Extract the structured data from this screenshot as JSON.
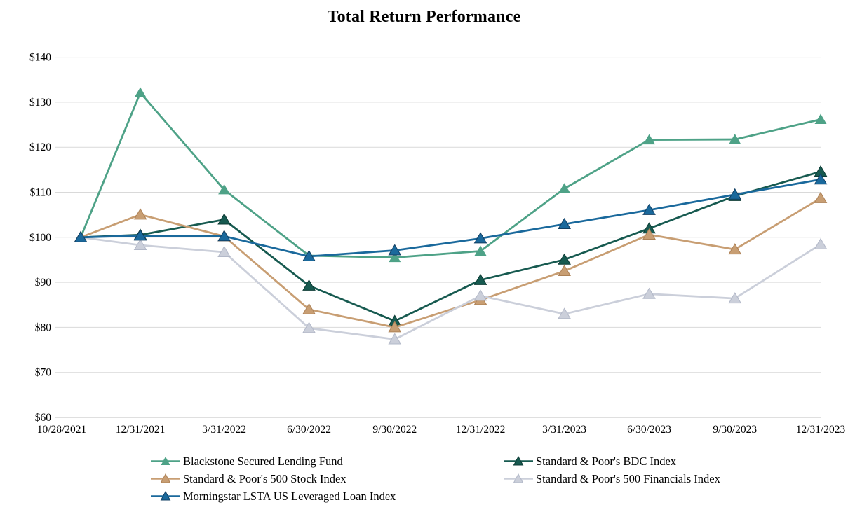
{
  "title": "Total Return Performance",
  "chart_data": {
    "type": "line",
    "title": "Total Return Performance",
    "xlabel": "",
    "ylabel": "",
    "grid": true,
    "legend_position": "bottom",
    "ylim": [
      60,
      140
    ],
    "y_tick_labels": [
      "$60",
      "$70",
      "$80",
      "$90",
      "$100",
      "$110",
      "$120",
      "$130",
      "$140"
    ],
    "y_tick_values": [
      60,
      70,
      80,
      90,
      100,
      110,
      120,
      130,
      140
    ],
    "x_labels": [
      "10/28/2021",
      "12/31/2021",
      "3/31/2022",
      "6/30/2022",
      "9/30/2022",
      "12/31/2022",
      "3/31/2023",
      "6/30/2023",
      "9/30/2023",
      "12/31/2023"
    ],
    "x_day_offsets": [
      0,
      64,
      154,
      245,
      337,
      429,
      519,
      610,
      702,
      794
    ],
    "series": [
      {
        "name": "Blackstone Secured Lending Fund",
        "color": "#4EA287",
        "edge_color": "#35english8a70",
        "values": [
          100.0,
          132.09,
          110.56,
          95.92,
          95.52,
          96.93,
          110.82,
          121.65,
          121.73,
          126.18
        ]
      },
      {
        "name": "Standard & Poor's BDC Index",
        "color": "#175A50",
        "edge_color": "#0c3b34",
        "values": [
          100.0,
          100.54,
          103.93,
          89.26,
          81.41,
          90.51,
          95.04,
          101.96,
          109.17,
          114.59
        ]
      },
      {
        "name": "Standard & Poor's 500 Stock Index",
        "color": "#C89E73",
        "edge_color": "#ad8156",
        "values": [
          100.0,
          105.05,
          100.22,
          83.98,
          80.0,
          86.06,
          92.51,
          100.6,
          97.31,
          108.69
        ]
      },
      {
        "name": "Standard & Poor's 500 Financials Index",
        "color": "#CBCFDA",
        "edge_color": "#b2b8c8",
        "values": [
          100.0,
          98.26,
          96.7,
          79.84,
          77.34,
          87.0,
          82.97,
          87.42,
          86.42,
          98.44
        ]
      },
      {
        "name": "Morningstar LSTA US Leveraged Loan Index",
        "color": "#1A699C",
        "edge_color": "#113f63",
        "values": [
          100.0,
          100.37,
          100.25,
          95.77,
          97.09,
          99.75,
          102.93,
          106.06,
          109.49,
          112.84
        ]
      }
    ],
    "legend_columns": {
      "left": [
        0,
        2,
        4
      ],
      "right": [
        1,
        3
      ]
    },
    "gridline_color": "#D9D9D9",
    "axis_line_color": "#BFBFBF"
  }
}
